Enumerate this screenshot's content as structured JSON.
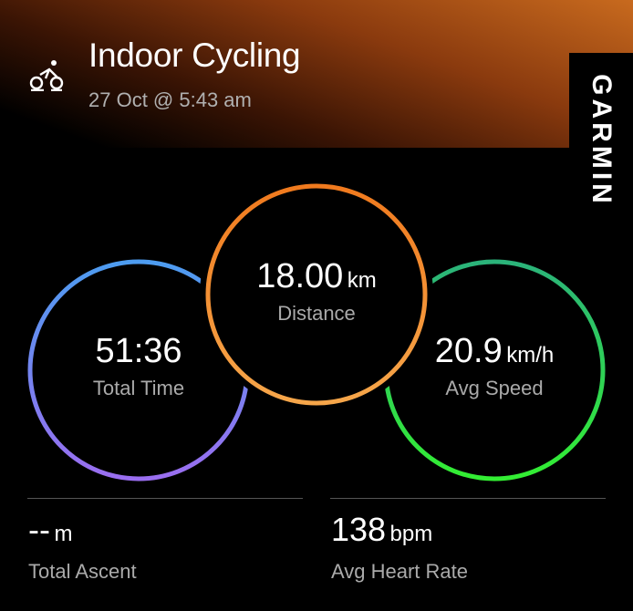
{
  "header": {
    "title": "Indoor Cycling",
    "date": "27 Oct @ 5:43 am",
    "activity_icon": "indoor-bike-icon",
    "brand": "GARMIN"
  },
  "rings": [
    {
      "value": "51:36",
      "unit": "",
      "label": "Total Time",
      "colors": [
        "#4d9cf0",
        "#9a6ef0"
      ]
    },
    {
      "value": "18.00",
      "unit": "km",
      "label": "Distance",
      "colors": [
        "#f07a1e",
        "#f6a64a"
      ]
    },
    {
      "value": "20.9",
      "unit": "km/h",
      "label": "Avg Speed",
      "colors": [
        "#2bb37a",
        "#33ee33"
      ]
    }
  ],
  "bottom": [
    {
      "value": "--",
      "unit": "m",
      "label": "Total Ascent"
    },
    {
      "value": "138",
      "unit": "bpm",
      "label": "Avg Heart Rate"
    }
  ]
}
